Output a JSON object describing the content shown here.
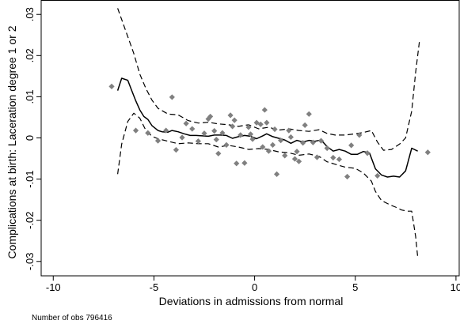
{
  "chart_data": {
    "type": "line",
    "title": "",
    "xlabel": "Deviations in admissions from normal",
    "ylabel": "Complications at birth: Laceration degree 1 or 2",
    "xlim": [
      -10.6,
      10.2
    ],
    "ylim": [
      -0.0335,
      0.0335
    ],
    "xticks": [
      "-10",
      "-5",
      "0",
      "5",
      "10"
    ],
    "xtick_values": [
      -10,
      -5,
      0,
      5,
      10
    ],
    "yticks": [
      "-.03",
      "-.02",
      "-.01",
      "0",
      ".01",
      ".02",
      ".03"
    ],
    "ytick_values": [
      -0.03,
      -0.02,
      -0.01,
      0,
      0.01,
      0.02,
      0.03
    ],
    "grid": false,
    "legend": "none",
    "colors": {
      "fit": "#000000",
      "ci": "#000000",
      "points": "#808080"
    },
    "series": [
      {
        "kind": "fit",
        "style": "solid",
        "x": [
          -6.8,
          -6.6,
          -6.3,
          -6.1,
          -5.9,
          -5.7,
          -5.5,
          -5.3,
          -5.1,
          -4.8,
          -4.6,
          -4.3,
          -4.1,
          -3.8,
          -3.5,
          -3.2,
          -2.9,
          -2.6,
          -2.3,
          -2.0,
          -1.7,
          -1.4,
          -1.1,
          -0.8,
          -0.5,
          -0.2,
          0.1,
          0.4,
          0.6,
          0.9,
          1.2,
          1.5,
          1.8,
          2.1,
          2.4,
          2.7,
          3.0,
          3.3,
          3.6,
          3.9,
          4.2,
          4.5,
          4.8,
          5.1,
          5.4,
          5.7,
          6.0,
          6.3,
          6.6,
          6.9,
          7.2,
          7.5,
          7.8,
          8.1
        ],
        "y": [
          0.0115,
          0.0145,
          0.014,
          0.0115,
          0.009,
          0.0068,
          0.0052,
          0.0045,
          0.003,
          0.0018,
          0.0015,
          0.0014,
          0.0018,
          0.0015,
          0.001,
          0.0006,
          0.0006,
          0.0005,
          0.0004,
          0.0007,
          0.0007,
          0.0006,
          -0.0001,
          0.0003,
          0.0006,
          0.0004,
          -0.0002,
          0.0005,
          0.001,
          0.0003,
          -0.0001,
          -0.0005,
          -0.0013,
          -0.0006,
          -0.001,
          -0.0006,
          -0.0008,
          -0.0005,
          -0.0021,
          -0.0032,
          -0.0028,
          -0.0032,
          -0.004,
          -0.004,
          -0.0033,
          -0.0036,
          -0.0075,
          -0.009,
          -0.0095,
          -0.0093,
          -0.0095,
          -0.008,
          -0.0025,
          -0.0032
        ]
      },
      {
        "kind": "ci-upper",
        "style": "dashed",
        "x": [
          -6.8,
          -6.4,
          -6.0,
          -5.7,
          -5.4,
          -5.1,
          -4.8,
          -4.3,
          -3.8,
          -3.3,
          -2.8,
          -2.3,
          -1.8,
          -1.3,
          -0.8,
          -0.3,
          0.2,
          0.7,
          1.2,
          1.7,
          2.2,
          2.7,
          3.2,
          3.6,
          4.0,
          4.5,
          5.0,
          5.4,
          5.8,
          6.1,
          6.4,
          6.8,
          7.2,
          7.5,
          7.8,
          8.0,
          8.2
        ],
        "y": [
          0.0315,
          0.026,
          0.0205,
          0.0155,
          0.012,
          0.0092,
          0.0072,
          0.0058,
          0.0056,
          0.0042,
          0.0036,
          0.0038,
          0.0034,
          0.0032,
          0.0028,
          0.0032,
          0.0022,
          0.0026,
          0.0019,
          0.0022,
          0.0018,
          0.0016,
          0.002,
          0.0011,
          0.0007,
          0.0007,
          0.001,
          0.0013,
          0.0018,
          -0.001,
          -0.003,
          -0.0028,
          -0.0015,
          0.0,
          0.0065,
          0.016,
          0.024
        ]
      },
      {
        "kind": "ci-lower",
        "style": "dashed",
        "x": [
          -6.8,
          -6.6,
          -6.3,
          -6.0,
          -5.7,
          -5.4,
          -5.1,
          -4.8,
          -4.3,
          -3.8,
          -3.3,
          -2.8,
          -2.3,
          -1.8,
          -1.3,
          -0.8,
          -0.3,
          0.2,
          0.7,
          1.2,
          1.7,
          2.2,
          2.7,
          3.2,
          3.6,
          4.0,
          4.5,
          5.0,
          5.4,
          5.8,
          6.0,
          6.3,
          6.7,
          7.0,
          7.3,
          7.6,
          7.8,
          8.0,
          8.1
        ],
        "y": [
          -0.0088,
          -0.0015,
          0.004,
          0.006,
          0.0048,
          0.0018,
          0.0004,
          -0.0002,
          -0.0008,
          -0.0014,
          -0.0012,
          -0.0014,
          -0.0014,
          -0.0022,
          -0.0018,
          -0.0022,
          -0.0028,
          -0.0026,
          -0.0028,
          -0.0034,
          -0.0036,
          -0.0042,
          -0.0039,
          -0.0045,
          -0.0058,
          -0.0064,
          -0.0071,
          -0.0074,
          -0.0085,
          -0.0105,
          -0.013,
          -0.0152,
          -0.0162,
          -0.0168,
          -0.0175,
          -0.0178,
          -0.0178,
          -0.024,
          -0.029
        ]
      },
      {
        "kind": "binned-means",
        "style": "diamond-markers",
        "points": [
          [
            -7.1,
            0.0125
          ],
          [
            -5.9,
            0.0018
          ],
          [
            -5.3,
            0.0012
          ],
          [
            -4.8,
            -0.0007
          ],
          [
            -4.4,
            0.0018
          ],
          [
            -4.1,
            0.0099
          ],
          [
            -3.9,
            -0.0029
          ],
          [
            -3.6,
            0.0001
          ],
          [
            -3.4,
            0.0035
          ],
          [
            -3.1,
            0.0022
          ],
          [
            -2.8,
            -0.0008
          ],
          [
            -2.5,
            0.0011
          ],
          [
            -2.3,
            0.0046
          ],
          [
            -2.2,
            0.0052
          ],
          [
            -2.0,
            0.0017
          ],
          [
            -1.9,
            -0.0004
          ],
          [
            -1.8,
            -0.0038
          ],
          [
            -1.6,
            0.0012
          ],
          [
            -1.4,
            -0.0017
          ],
          [
            -1.2,
            0.0055
          ],
          [
            -1.1,
            0.0028
          ],
          [
            -1.0,
            0.0043
          ],
          [
            -0.9,
            -0.0062
          ],
          [
            -0.7,
            0.0007
          ],
          [
            -0.5,
            -0.0061
          ],
          [
            -0.3,
            0.0026
          ],
          [
            -0.2,
            0.0009
          ],
          [
            -0.1,
            -0.0003
          ],
          [
            0.1,
            0.0037
          ],
          [
            0.3,
            0.0033
          ],
          [
            0.4,
            -0.0022
          ],
          [
            0.5,
            0.0068
          ],
          [
            0.6,
            0.0037
          ],
          [
            0.7,
            -0.0032
          ],
          [
            0.9,
            -0.0017
          ],
          [
            1.0,
            0.0021
          ],
          [
            1.1,
            -0.0088
          ],
          [
            1.3,
            -0.0006
          ],
          [
            1.5,
            -0.0043
          ],
          [
            1.7,
            0.0018
          ],
          [
            1.8,
            0.0002
          ],
          [
            2.0,
            -0.0051
          ],
          [
            2.1,
            -0.0033
          ],
          [
            2.2,
            -0.0057
          ],
          [
            2.4,
            -0.0012
          ],
          [
            2.5,
            0.0031
          ],
          [
            2.7,
            0.0058
          ],
          [
            2.9,
            -0.0011
          ],
          [
            3.1,
            -0.0047
          ],
          [
            3.3,
            -0.0007
          ],
          [
            3.6,
            -0.0025
          ],
          [
            3.9,
            -0.0048
          ],
          [
            4.2,
            -0.0052
          ],
          [
            4.6,
            -0.0094
          ],
          [
            4.8,
            -0.0018
          ],
          [
            5.2,
            0.0007
          ],
          [
            5.6,
            -0.0037
          ],
          [
            6.1,
            -0.0092
          ],
          [
            8.6,
            -0.0035
          ]
        ]
      }
    ]
  },
  "footer": {
    "note": "Number of obs 796416"
  }
}
